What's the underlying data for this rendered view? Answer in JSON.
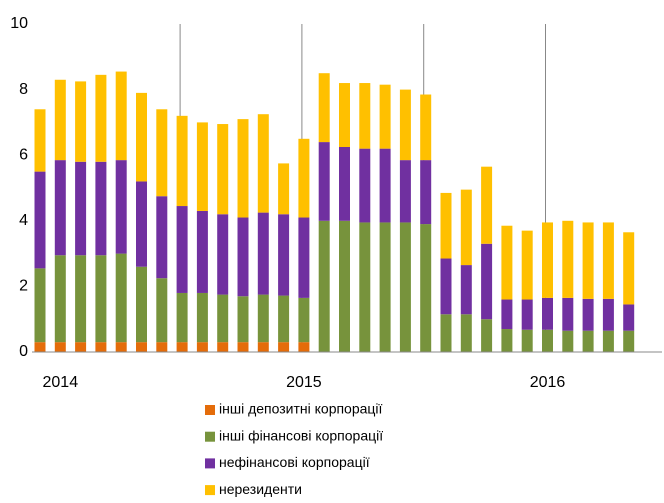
{
  "chart_data": {
    "type": "stacked_bar",
    "categories": [
      null,
      "2014",
      null,
      null,
      null,
      null,
      null,
      null,
      null,
      null,
      null,
      null,
      null,
      "2015",
      null,
      null,
      null,
      null,
      null,
      null,
      null,
      null,
      null,
      null,
      null,
      "2016",
      null,
      null,
      null,
      null
    ],
    "series": [
      {
        "name": "інші депозитні корпорації",
        "color": "#e46c0a",
        "values": [
          0.3,
          0.3,
          0.3,
          0.3,
          0.3,
          0.3,
          0.3,
          0.3,
          0.3,
          0.3,
          0.3,
          0.3,
          0.3,
          0.3,
          0,
          0,
          0,
          0,
          0,
          0,
          0,
          0,
          0,
          0,
          0,
          0,
          0,
          0,
          0,
          0
        ]
      },
      {
        "name": "інші фінансові корпорації",
        "color": "#77933c",
        "values": [
          2.25,
          2.65,
          2.65,
          2.65,
          2.7,
          2.3,
          1.95,
          1.5,
          1.5,
          1.45,
          1.4,
          1.45,
          1.42,
          1.35,
          4.0,
          4.0,
          3.95,
          3.95,
          3.95,
          3.9,
          1.15,
          1.15,
          1.0,
          0.7,
          0.68,
          0.68,
          0.65,
          0.65,
          0.65,
          0.65
        ]
      },
      {
        "name": "нефінансові корпорації",
        "color": "#7030a0",
        "values": [
          2.95,
          2.9,
          2.85,
          2.85,
          2.85,
          2.6,
          2.5,
          2.65,
          2.5,
          2.45,
          2.4,
          2.5,
          2.48,
          2.45,
          2.4,
          2.25,
          2.25,
          2.25,
          1.9,
          1.95,
          1.7,
          1.5,
          2.3,
          0.9,
          0.92,
          0.97,
          1.0,
          0.97,
          0.97,
          0.8
        ]
      },
      {
        "name": "нерезиденти",
        "color": "#ffc000",
        "values": [
          1.9,
          2.45,
          2.45,
          2.65,
          2.7,
          2.7,
          2.65,
          2.75,
          2.7,
          2.75,
          3.0,
          3.0,
          1.55,
          2.4,
          2.1,
          1.95,
          2.0,
          1.95,
          2.15,
          2.0,
          2.0,
          2.3,
          2.35,
          2.25,
          2.1,
          2.3,
          2.35,
          2.33,
          2.33,
          2.2
        ]
      }
    ],
    "ylim": [
      0,
      10
    ],
    "yticks": [
      0,
      2,
      4,
      6,
      8,
      10
    ]
  }
}
